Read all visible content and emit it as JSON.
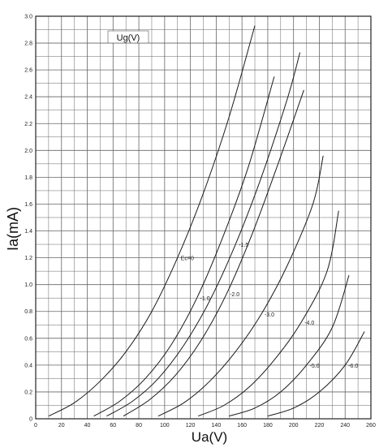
{
  "chart_data": {
    "type": "line",
    "title": "",
    "legend_title": "Ug(V)",
    "xlabel": "Ua(V)",
    "ylabel": "Ia(mA)",
    "xlim": [
      0,
      260
    ],
    "ylim": [
      0,
      3.0
    ],
    "x_ticks": [
      0,
      20,
      40,
      60,
      80,
      100,
      120,
      140,
      160,
      180,
      200,
      220,
      240,
      260
    ],
    "y_ticks": [
      "0",
      "0.2",
      "0.4",
      "0.6",
      "0.8",
      "1.0",
      "1.2",
      "1.4",
      "1.6",
      "1.8",
      "2.0",
      "2.2",
      "2.4",
      "2.6",
      "2.8",
      "3.0"
    ],
    "grid": true,
    "series": [
      {
        "name": "Ec=0",
        "x": [
          10,
          30,
          50,
          70,
          90,
          110,
          130,
          150,
          170
        ],
        "y": [
          0.02,
          0.12,
          0.28,
          0.5,
          0.8,
          1.2,
          1.68,
          2.25,
          2.93
        ]
      },
      {
        "name": "-1.0",
        "x": [
          45,
          65,
          85,
          105,
          125,
          145,
          165,
          185
        ],
        "y": [
          0.02,
          0.13,
          0.3,
          0.55,
          0.9,
          1.35,
          1.88,
          2.55
        ]
      },
      {
        "name": "-1.5",
        "x": [
          55,
          75,
          95,
          115,
          135,
          155,
          175,
          195,
          205
        ],
        "y": [
          0.02,
          0.13,
          0.3,
          0.55,
          0.88,
          1.3,
          1.8,
          2.38,
          2.73
        ]
      },
      {
        "name": "-2.0",
        "x": [
          68,
          88,
          108,
          128,
          148,
          168,
          188,
          208
        ],
        "y": [
          0.02,
          0.14,
          0.32,
          0.58,
          0.93,
          1.38,
          1.9,
          2.45
        ]
      },
      {
        "name": "-3.0",
        "x": [
          95,
          115,
          135,
          155,
          175,
          195,
          215,
          223
        ],
        "y": [
          0.02,
          0.12,
          0.28,
          0.5,
          0.78,
          1.14,
          1.6,
          1.96
        ]
      },
      {
        "name": "-4.0",
        "x": [
          126,
          146,
          166,
          186,
          206,
          226,
          235
        ],
        "y": [
          0.02,
          0.1,
          0.24,
          0.45,
          0.72,
          1.1,
          1.55
        ]
      },
      {
        "name": "-5.0",
        "x": [
          150,
          170,
          190,
          210,
          230,
          243
        ],
        "y": [
          0.02,
          0.08,
          0.2,
          0.4,
          0.68,
          1.07
        ]
      },
      {
        "name": "-6.0",
        "x": [
          180,
          200,
          220,
          240,
          255
        ],
        "y": [
          0.02,
          0.08,
          0.2,
          0.4,
          0.65
        ]
      }
    ]
  }
}
